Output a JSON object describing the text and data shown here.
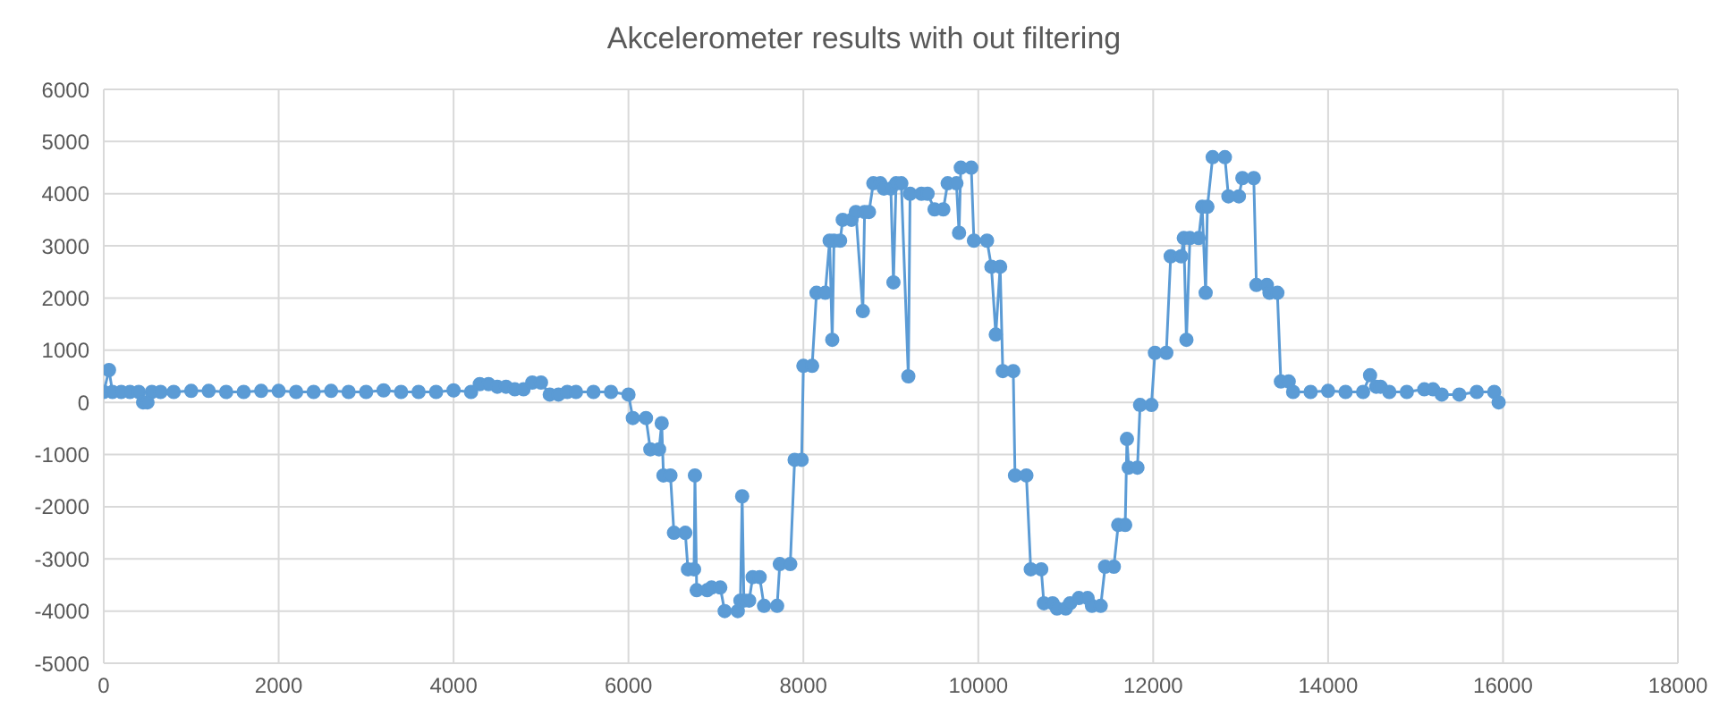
{
  "chart_data": {
    "type": "line",
    "title": "Akcelerometer results with out filtering",
    "color": "#5b9bd5",
    "marker": "circle",
    "line_style": "solid",
    "grid": true,
    "legend": false,
    "xlim": [
      0,
      18000
    ],
    "xticks": [
      0,
      2000,
      4000,
      6000,
      8000,
      10000,
      12000,
      14000,
      16000,
      18000
    ],
    "ylim": [
      -5000,
      6000
    ],
    "yticks": [
      -5000,
      -4000,
      -3000,
      -2000,
      -1000,
      0,
      1000,
      2000,
      3000,
      4000,
      5000,
      6000
    ],
    "x": [
      0,
      60,
      100,
      200,
      300,
      400,
      450,
      500,
      550,
      650,
      800,
      1000,
      1200,
      1400,
      1600,
      1800,
      2000,
      2200,
      2400,
      2600,
      2800,
      3000,
      3200,
      3400,
      3600,
      3800,
      4000,
      4200,
      4300,
      4400,
      4500,
      4600,
      4700,
      4800,
      4900,
      5000,
      5100,
      5200,
      5300,
      5400,
      5600,
      5800,
      6000,
      6050,
      6200,
      6250,
      6350,
      6380,
      6400,
      6480,
      6520,
      6650,
      6680,
      6750,
      6760,
      6780,
      6900,
      6950,
      7050,
      7100,
      7250,
      7280,
      7300,
      7320,
      7380,
      7420,
      7500,
      7550,
      7700,
      7730,
      7850,
      7900,
      7980,
      8000,
      8100,
      8150,
      8250,
      8300,
      8330,
      8350,
      8420,
      8450,
      8550,
      8600,
      8680,
      8700,
      8750,
      8800,
      8880,
      8920,
      9000,
      9030,
      9060,
      9120,
      9200,
      9220,
      9350,
      9420,
      9500,
      9600,
      9650,
      9750,
      9780,
      9800,
      9920,
      9950,
      10100,
      10150,
      10200,
      10250,
      10280,
      10400,
      10420,
      10550,
      10600,
      10720,
      10750,
      10850,
      10900,
      11000,
      11050,
      11150,
      11250,
      11300,
      11400,
      11450,
      11550,
      11600,
      11680,
      11700,
      11720,
      11820,
      11850,
      11980,
      12020,
      12150,
      12200,
      12320,
      12350,
      12380,
      12420,
      12520,
      12560,
      12600,
      12620,
      12680,
      12820,
      12860,
      12980,
      13020,
      13150,
      13180,
      13300,
      13330,
      13420,
      13460,
      13550,
      13600,
      13800,
      14000,
      14200,
      14400,
      14480,
      14550,
      14600,
      14700,
      14900,
      15100,
      15200,
      15300,
      15500,
      15700,
      15900,
      15950
    ],
    "values": [
      200,
      620,
      200,
      200,
      200,
      200,
      0,
      0,
      200,
      200,
      200,
      220,
      220,
      200,
      200,
      220,
      220,
      200,
      200,
      220,
      200,
      200,
      230,
      200,
      200,
      200,
      230,
      200,
      350,
      350,
      300,
      300,
      250,
      250,
      380,
      380,
      150,
      150,
      200,
      200,
      200,
      200,
      150,
      -300,
      -300,
      -900,
      -900,
      -400,
      -1400,
      -1400,
      -2500,
      -2500,
      -3200,
      -3200,
      -1400,
      -3600,
      -3600,
      -3550,
      -3550,
      -4000,
      -4000,
      -3800,
      -1800,
      -3800,
      -3800,
      -3350,
      -3350,
      -3900,
      -3900,
      -3100,
      -3100,
      -1100,
      -1100,
      700,
      700,
      2100,
      2100,
      3100,
      1200,
      3100,
      3100,
      3500,
      3500,
      3650,
      1750,
      3650,
      3650,
      4200,
      4200,
      4100,
      4100,
      2300,
      4200,
      4200,
      500,
      4000,
      4000,
      4000,
      3700,
      3700,
      4200,
      4200,
      3250,
      4500,
      4500,
      3100,
      3100,
      2600,
      1300,
      2600,
      600,
      600,
      -1400,
      -1400,
      -3200,
      -3200,
      -3850,
      -3850,
      -3950,
      -3950,
      -3850,
      -3750,
      -3750,
      -3900,
      -3900,
      -3150,
      -3150,
      -2350,
      -2350,
      -700,
      -1250,
      -1250,
      -50,
      -50,
      950,
      950,
      2800,
      2800,
      3150,
      1200,
      3150,
      3150,
      3750,
      2100,
      3750,
      4700,
      4700,
      3950,
      3950,
      4300,
      4300,
      2250,
      2250,
      2100,
      2100,
      400,
      400,
      200,
      200,
      220,
      200,
      200,
      520,
      300,
      300,
      200,
      200,
      250,
      250,
      150,
      150,
      200,
      200,
      0
    ]
  }
}
